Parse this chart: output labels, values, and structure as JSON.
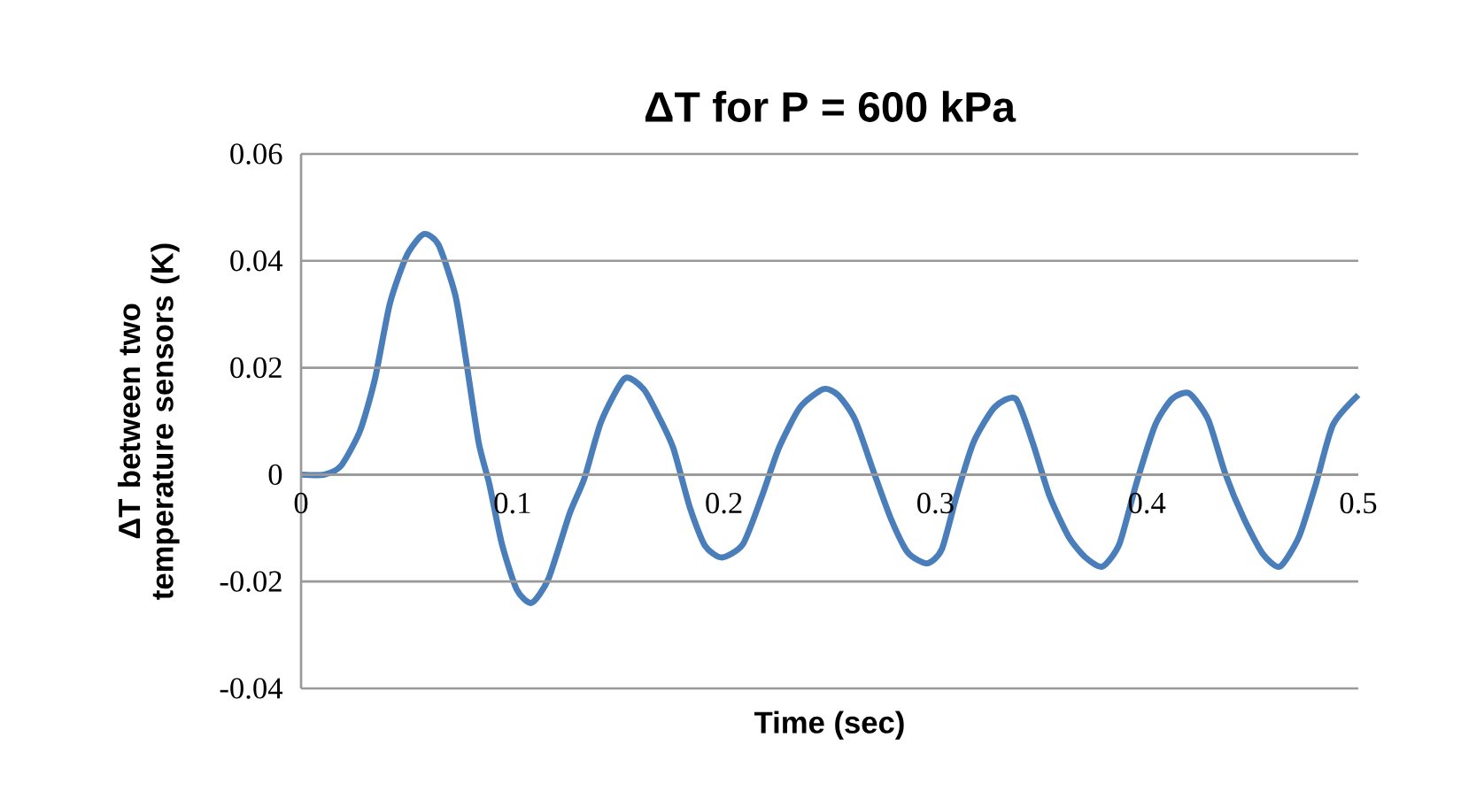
{
  "chart_data": {
    "type": "line",
    "title": "ΔT for P = 600 kPa",
    "xlabel": "Time (sec)",
    "ylabel": "ΔT  between two temperature sensors (K)",
    "xlim": [
      0,
      0.5
    ],
    "ylim": [
      -0.04,
      0.06
    ],
    "xticks": [
      0,
      0.1,
      0.2,
      0.3,
      0.4,
      0.5
    ],
    "yticks": [
      -0.04,
      -0.02,
      0,
      0.02,
      0.04,
      0.06
    ],
    "grid": "y",
    "marker": "none",
    "line_style": "solid",
    "series": [
      {
        "color": "#4a7ebb",
        "x": [
          0,
          0.011,
          0.019,
          0.028,
          0.035,
          0.042,
          0.05,
          0.058,
          0.065,
          0.073,
          0.078,
          0.084,
          0.089,
          0.095,
          0.102,
          0.109,
          0.117,
          0.127,
          0.134,
          0.142,
          0.153,
          0.162,
          0.169,
          0.176,
          0.184,
          0.191,
          0.199,
          0.209,
          0.218,
          0.226,
          0.236,
          0.247,
          0.254,
          0.262,
          0.271,
          0.279,
          0.287,
          0.296,
          0.303,
          0.31,
          0.318,
          0.328,
          0.338,
          0.346,
          0.354,
          0.363,
          0.371,
          0.379,
          0.387,
          0.395,
          0.404,
          0.412,
          0.42,
          0.429,
          0.437,
          0.446,
          0.455,
          0.463,
          0.472,
          0.48,
          0.488,
          0.5
        ],
        "values": [
          0,
          0,
          0.0017,
          0.0083,
          0.018,
          0.032,
          0.041,
          0.045,
          0.043,
          0.0335,
          0.0215,
          0.006,
          -0.0017,
          -0.013,
          -0.0215,
          -0.024,
          -0.0195,
          -0.0073,
          -0.0007,
          0.01,
          0.018,
          0.016,
          0.011,
          0.005,
          -0.0063,
          -0.0133,
          -0.0155,
          -0.013,
          -0.004,
          0.005,
          0.0126,
          0.016,
          0.0149,
          0.0103,
          0.0003,
          -0.0083,
          -0.0146,
          -0.0166,
          -0.014,
          -0.004,
          0.006,
          0.0126,
          0.0142,
          0.006,
          -0.004,
          -0.0116,
          -0.0155,
          -0.0172,
          -0.013,
          -0.0017,
          0.0093,
          0.0142,
          0.0152,
          0.0103,
          0.0003,
          -0.0083,
          -0.0149,
          -0.0172,
          -0.0116,
          -0.0017,
          0.0093,
          0.0149
        ]
      }
    ]
  }
}
